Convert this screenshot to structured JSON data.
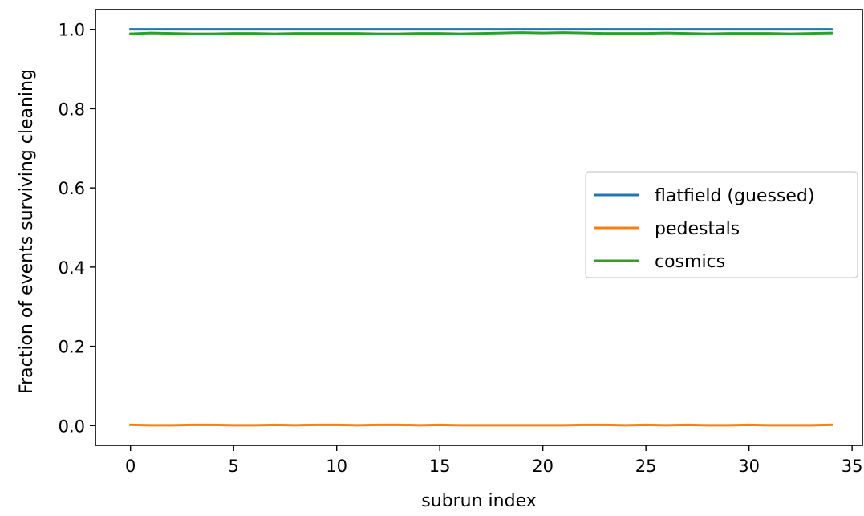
{
  "chart_data": {
    "type": "line",
    "title": "",
    "xlabel": "subrun index",
    "ylabel": "Fraction of events surviving cleaning",
    "xlim": [
      -1.7,
      35.5
    ],
    "ylim": [
      -0.05,
      1.05
    ],
    "xticks": [
      0,
      5,
      10,
      15,
      20,
      25,
      30,
      35
    ],
    "xtick_labels": [
      "0",
      "5",
      "10",
      "15",
      "20",
      "25",
      "30",
      "35"
    ],
    "yticks": [
      0.0,
      0.2,
      0.4,
      0.6,
      0.8,
      1.0
    ],
    "ytick_labels": [
      "0.0",
      "0.2",
      "0.4",
      "0.6",
      "0.8",
      "1.0"
    ],
    "grid": false,
    "legend_position": "center-right",
    "x": [
      0,
      1,
      2,
      3,
      4,
      5,
      6,
      7,
      8,
      9,
      10,
      11,
      12,
      13,
      14,
      15,
      16,
      17,
      18,
      19,
      20,
      21,
      22,
      23,
      24,
      25,
      26,
      27,
      28,
      29,
      30,
      31,
      32,
      33,
      34
    ],
    "series": [
      {
        "name": "flatfield (guessed)",
        "color": "#1f77b4",
        "values": [
          1.0,
          1.0,
          1.0,
          1.0,
          1.0,
          1.0,
          1.0,
          1.0,
          1.0,
          1.0,
          1.0,
          1.0,
          1.0,
          1.0,
          1.0,
          1.0,
          1.0,
          1.0,
          1.0,
          1.0,
          1.0,
          1.0,
          1.0,
          1.0,
          1.0,
          1.0,
          1.0,
          1.0,
          1.0,
          1.0,
          1.0,
          1.0,
          1.0,
          1.0,
          1.0
        ]
      },
      {
        "name": "pedestals",
        "color": "#ff7f0e",
        "values": [
          0.002,
          0.001,
          0.001,
          0.002,
          0.002,
          0.001,
          0.001,
          0.002,
          0.001,
          0.002,
          0.002,
          0.001,
          0.002,
          0.002,
          0.001,
          0.002,
          0.001,
          0.001,
          0.001,
          0.001,
          0.001,
          0.001,
          0.002,
          0.002,
          0.001,
          0.002,
          0.001,
          0.002,
          0.001,
          0.001,
          0.002,
          0.001,
          0.001,
          0.001,
          0.002
        ]
      },
      {
        "name": "cosmics",
        "color": "#2ca02c",
        "values": [
          0.989,
          0.991,
          0.99,
          0.989,
          0.989,
          0.99,
          0.99,
          0.989,
          0.99,
          0.99,
          0.99,
          0.99,
          0.989,
          0.989,
          0.99,
          0.99,
          0.989,
          0.99,
          0.991,
          0.992,
          0.991,
          0.992,
          0.991,
          0.99,
          0.99,
          0.99,
          0.991,
          0.99,
          0.989,
          0.99,
          0.99,
          0.99,
          0.989,
          0.99,
          0.991
        ]
      }
    ]
  }
}
